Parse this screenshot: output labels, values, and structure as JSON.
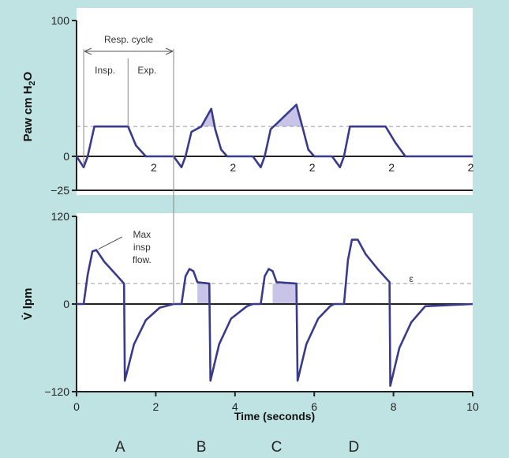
{
  "chart_data": [
    {
      "type": "line",
      "name": "pressure-panel",
      "ylabel": "Paw cm H2O",
      "ylabel_main": "Paw cm H",
      "ylabel_sub": "2",
      "ylabel_tail": "O",
      "ylim": [
        -25,
        100
      ],
      "y_ticks": [
        "100",
        "0",
        "−25"
      ],
      "reference_line": 22,
      "waveform_labels": [
        "2",
        "2",
        "2",
        "2",
        "2"
      ],
      "annotations": {
        "resp_cycle": "Resp. cycle",
        "insp": "Insp.",
        "exp": "Exp."
      },
      "series": [
        {
          "values": [
            [
              0,
              0
            ],
            [
              0.18,
              -8
            ],
            [
              0.28,
              0
            ],
            [
              0.45,
              22
            ],
            [
              1.3,
              22
            ],
            [
              1.5,
              8
            ],
            [
              1.75,
              0
            ],
            [
              2.45,
              0
            ]
          ]
        },
        {
          "values": [
            [
              2.45,
              0
            ],
            [
              2.65,
              -8
            ],
            [
              2.75,
              0
            ],
            [
              2.9,
              18
            ],
            [
              3.15,
              22
            ],
            [
              3.4,
              35
            ],
            [
              3.5,
              20
            ],
            [
              3.65,
              5
            ],
            [
              3.8,
              0
            ],
            [
              4.45,
              0
            ]
          ]
        },
        {
          "values": [
            [
              4.45,
              0
            ],
            [
              4.65,
              -8
            ],
            [
              4.75,
              0
            ],
            [
              4.9,
              20
            ],
            [
              5.05,
              24
            ],
            [
              5.55,
              38
            ],
            [
              5.7,
              22
            ],
            [
              5.85,
              5
            ],
            [
              6.0,
              0
            ],
            [
              6.45,
              0
            ]
          ]
        },
        {
          "values": [
            [
              6.45,
              0
            ],
            [
              6.65,
              -8
            ],
            [
              6.75,
              0
            ],
            [
              6.9,
              22
            ],
            [
              7.8,
              22
            ],
            [
              8.05,
              10
            ],
            [
              8.3,
              0
            ],
            [
              10,
              0
            ]
          ]
        }
      ],
      "shaded_regions": [
        {
          "x": [
            3.05,
            3.65
          ],
          "from_y": 22,
          "label": "B"
        },
        {
          "x": [
            4.95,
            5.8
          ],
          "from_y": 22,
          "label": "C"
        }
      ]
    },
    {
      "type": "line",
      "name": "flow-panel",
      "ylabel": "V̇ lpm",
      "ylim": [
        -120,
        120
      ],
      "y_ticks": [
        "120",
        "0",
        "−120"
      ],
      "xlim": [
        0,
        10
      ],
      "x_ticks": [
        "0",
        "2",
        "4",
        "6",
        "8",
        "10"
      ],
      "xlabel": "Time (seconds)",
      "reference_line": 28,
      "annotations": {
        "max_insp_flow": [
          "Max",
          "insp",
          "flow."
        ],
        "small_mark": "ε"
      },
      "series": [
        {
          "values": [
            [
              0,
              0
            ],
            [
              0.18,
              0
            ],
            [
              0.28,
              40
            ],
            [
              0.4,
              72
            ],
            [
              0.5,
              74
            ],
            [
              0.7,
              58
            ],
            [
              1.0,
              40
            ],
            [
              1.2,
              28
            ],
            [
              1.22,
              -105
            ],
            [
              1.45,
              -55
            ],
            [
              1.75,
              -22
            ],
            [
              2.1,
              -5
            ],
            [
              2.45,
              0
            ]
          ]
        },
        {
          "values": [
            [
              2.45,
              0
            ],
            [
              2.65,
              0
            ],
            [
              2.75,
              38
            ],
            [
              2.85,
              48
            ],
            [
              2.95,
              45
            ],
            [
              3.05,
              30
            ],
            [
              3.35,
              28
            ],
            [
              3.38,
              -105
            ],
            [
              3.6,
              -55
            ],
            [
              3.9,
              -20
            ],
            [
              4.3,
              -3
            ],
            [
              4.45,
              0
            ]
          ]
        },
        {
          "values": [
            [
              4.45,
              0
            ],
            [
              4.65,
              0
            ],
            [
              4.75,
              38
            ],
            [
              4.85,
              48
            ],
            [
              4.95,
              45
            ],
            [
              5.05,
              30
            ],
            [
              5.55,
              28
            ],
            [
              5.58,
              -105
            ],
            [
              5.8,
              -55
            ],
            [
              6.1,
              -20
            ],
            [
              6.4,
              -3
            ],
            [
              6.5,
              0
            ]
          ]
        },
        {
          "values": [
            [
              6.5,
              0
            ],
            [
              6.75,
              0
            ],
            [
              6.85,
              60
            ],
            [
              6.95,
              88
            ],
            [
              7.1,
              88
            ],
            [
              7.3,
              68
            ],
            [
              7.6,
              48
            ],
            [
              7.9,
              30
            ],
            [
              7.92,
              -112
            ],
            [
              8.15,
              -60
            ],
            [
              8.45,
              -25
            ],
            [
              8.8,
              -3
            ],
            [
              10,
              0
            ]
          ]
        }
      ],
      "shaded_regions": [
        {
          "x": [
            3.05,
            3.38
          ],
          "from_y": 0,
          "top_y": 28,
          "label": "B"
        },
        {
          "x": [
            4.95,
            5.58
          ],
          "from_y": 0,
          "top_y": 28,
          "label": "C"
        }
      ]
    }
  ],
  "mode_labels": [
    "A",
    "B",
    "C",
    "D"
  ],
  "mode_label_x": [
    1.1,
    3.15,
    5.05,
    7.0
  ],
  "colors": {
    "background": "#bfe3e3",
    "panel": "#ffffff",
    "waveform": "#3a3a8c",
    "shade": "#c8c4e8",
    "axis": "#222222",
    "dashed": "#999999"
  }
}
